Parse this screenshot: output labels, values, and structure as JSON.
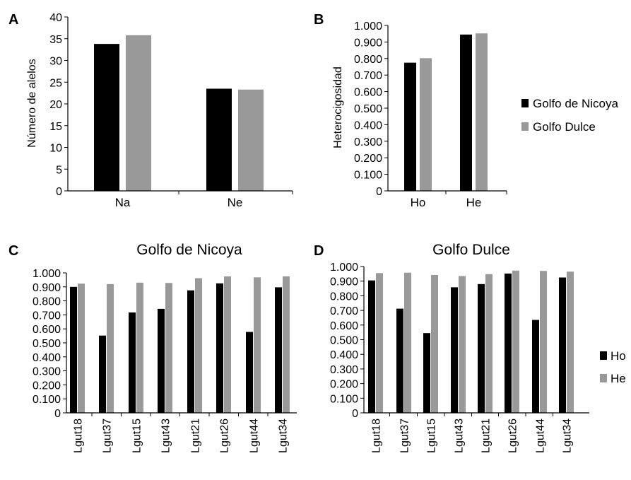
{
  "colors": {
    "series1": "#000000",
    "series2": "#999999"
  },
  "legend_top": {
    "items": [
      "Golfo de Nicoya",
      "Golfo Dulce"
    ]
  },
  "legend_bottom": {
    "items": [
      "Ho",
      "He"
    ]
  },
  "chart_data": [
    {
      "panel": "A",
      "type": "bar",
      "title": "",
      "ylabel": "Número de alelos",
      "categories": [
        "Na",
        "Ne"
      ],
      "series": [
        {
          "name": "Golfo de Nicoya",
          "values": [
            33.8,
            23.5
          ]
        },
        {
          "name": "Golfo Dulce",
          "values": [
            35.8,
            23.3
          ]
        }
      ],
      "ylim": [
        0,
        40
      ],
      "yticks": [
        0,
        5,
        10,
        15,
        20,
        25,
        30,
        35,
        40
      ],
      "yticklabels": [
        "0",
        "5",
        "10",
        "15",
        "20",
        "25",
        "30",
        "35",
        "40"
      ]
    },
    {
      "panel": "B",
      "type": "bar",
      "title": "",
      "ylabel": "Heterocigosidad",
      "categories": [
        "Ho",
        "He"
      ],
      "series": [
        {
          "name": "Golfo de Nicoya",
          "values": [
            0.775,
            0.945
          ]
        },
        {
          "name": "Golfo Dulce",
          "values": [
            0.802,
            0.952
          ]
        }
      ],
      "ylim": [
        0,
        1
      ],
      "yticks": [
        0,
        0.1,
        0.2,
        0.3,
        0.4,
        0.5,
        0.6,
        0.7,
        0.8,
        0.9,
        1.0
      ],
      "yticklabels": [
        "0",
        "0.100",
        "0.200",
        "0.300",
        "0.400",
        "0.500",
        "0.600",
        "0.700",
        "0.800",
        "0.900",
        "1.000"
      ]
    },
    {
      "panel": "C",
      "type": "bar",
      "title": "Golfo de Nicoya",
      "ylabel": "",
      "categories": [
        "Lgut18",
        "Lgut37",
        "Lgut15",
        "Lgut43",
        "Lgut21",
        "Lgut26",
        "Lgut44",
        "Lgut34"
      ],
      "series": [
        {
          "name": "Ho",
          "values": [
            0.9,
            0.552,
            0.717,
            0.743,
            0.875,
            0.925,
            0.578,
            0.897
          ]
        },
        {
          "name": "He",
          "values": [
            0.923,
            0.92,
            0.93,
            0.928,
            0.962,
            0.975,
            0.968,
            0.975
          ]
        }
      ],
      "ylim": [
        0,
        1
      ],
      "yticks": [
        0,
        0.1,
        0.2,
        0.3,
        0.4,
        0.5,
        0.6,
        0.7,
        0.8,
        0.9,
        1.0
      ],
      "yticklabels": [
        "0",
        "0.100",
        "0.200",
        "0.300",
        "0.400",
        "0.500",
        "0.600",
        "0.700",
        "0.800",
        "0.900",
        "1.000"
      ]
    },
    {
      "panel": "D",
      "type": "bar",
      "title": "Golfo Dulce",
      "ylabel": "",
      "categories": [
        "Lgut18",
        "Lgut37",
        "Lgut15",
        "Lgut43",
        "Lgut21",
        "Lgut26",
        "Lgut44",
        "Lgut34"
      ],
      "series": [
        {
          "name": "Ho",
          "values": [
            0.905,
            0.712,
            0.545,
            0.858,
            0.88,
            0.952,
            0.635,
            0.925
          ]
        },
        {
          "name": "He",
          "values": [
            0.955,
            0.958,
            0.942,
            0.935,
            0.948,
            0.972,
            0.97,
            0.965
          ]
        }
      ],
      "ylim": [
        0,
        1
      ],
      "yticks": [
        0,
        0.1,
        0.2,
        0.3,
        0.4,
        0.5,
        0.6,
        0.7,
        0.8,
        0.9,
        1.0
      ],
      "yticklabels": [
        "0",
        "0.100",
        "0.200",
        "0.300",
        "0.400",
        "0.500",
        "0.600",
        "0.700",
        "0.800",
        "0.900",
        "1.000"
      ]
    }
  ]
}
